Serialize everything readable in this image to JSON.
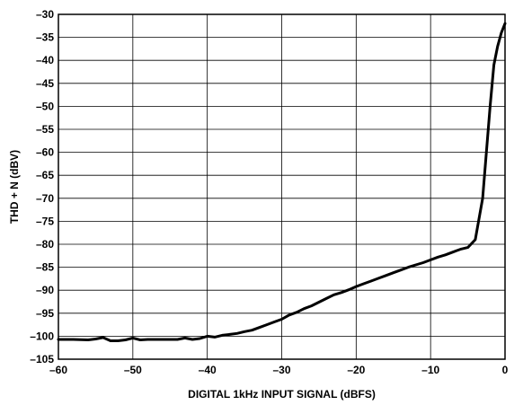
{
  "chart_data": {
    "type": "line",
    "xlabel": "DIGITAL 1kHz INPUT SIGNAL (dBFS)",
    "ylabel": "THD + N (dBV)",
    "xlim": [
      -60,
      0
    ],
    "ylim": [
      -105,
      -30
    ],
    "grid": true,
    "x_ticks": [
      -60,
      -50,
      -40,
      -30,
      -20,
      -10,
      0
    ],
    "x_tick_labels": [
      "–60",
      "–50",
      "–40",
      "–30",
      "–20",
      "–10",
      "0"
    ],
    "y_ticks": [
      -30,
      -35,
      -40,
      -45,
      -50,
      -55,
      -60,
      -65,
      -70,
      -75,
      -80,
      -85,
      -90,
      -95,
      -100,
      -105
    ],
    "y_tick_labels": [
      "–30",
      "–35",
      "–40",
      "–45",
      "–50",
      "–55",
      "–60",
      "–65",
      "–70",
      "–75",
      "–80",
      "–85",
      "–90",
      "–95",
      "–100",
      "–105"
    ],
    "series": [
      {
        "color": "#000000",
        "x": [
          -60,
          -58,
          -56,
          -55,
          -54,
          -53,
          -52,
          -51,
          -50,
          -49,
          -48,
          -47,
          -46,
          -45,
          -44,
          -43,
          -42,
          -41,
          -40,
          -39,
          -38,
          -37,
          -36,
          -35,
          -34,
          -33,
          -32,
          -31,
          -30,
          -29,
          -28,
          -27,
          -26,
          -25,
          -24,
          -23,
          -22,
          -21,
          -20,
          -19,
          -18,
          -17,
          -16,
          -15,
          -14,
          -13,
          -12,
          -11,
          -10,
          -9,
          -8,
          -7,
          -6,
          -5,
          -4,
          -3,
          -2,
          -1.5,
          -1,
          -0.5,
          0
        ],
        "values": [
          -100.7,
          -100.7,
          -100.8,
          -100.6,
          -100.3,
          -101.0,
          -101.0,
          -100.8,
          -100.4,
          -100.8,
          -100.7,
          -100.7,
          -100.7,
          -100.7,
          -100.7,
          -100.4,
          -100.7,
          -100.5,
          -100.0,
          -100.2,
          -99.8,
          -99.6,
          -99.4,
          -99.0,
          -98.7,
          -98.1,
          -97.5,
          -96.9,
          -96.3,
          -95.4,
          -94.8,
          -94.0,
          -93.4,
          -92.6,
          -91.8,
          -91.0,
          -90.5,
          -89.9,
          -89.2,
          -88.6,
          -88.0,
          -87.4,
          -86.8,
          -86.2,
          -85.6,
          -85.0,
          -84.5,
          -84.0,
          -83.4,
          -82.8,
          -82.3,
          -81.7,
          -81.1,
          -80.7,
          -79.0,
          -70.0,
          -50.0,
          -41.0,
          -37.0,
          -34.0,
          -32.0
        ]
      }
    ]
  }
}
